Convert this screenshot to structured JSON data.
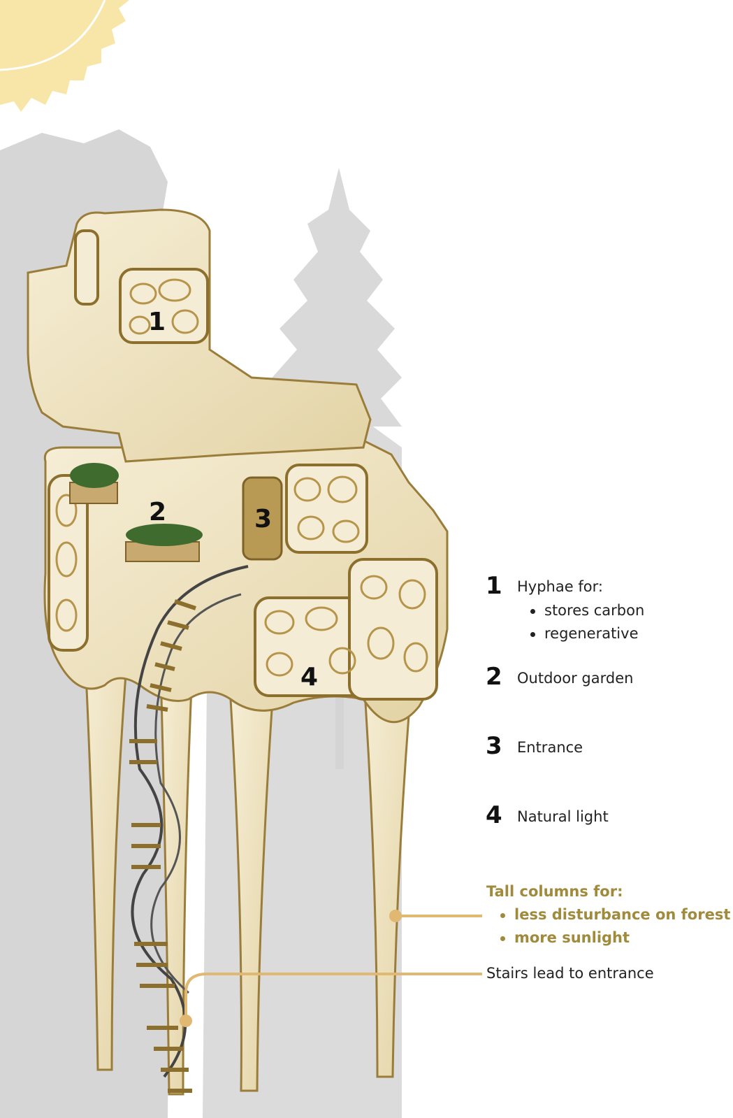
{
  "colors": {
    "sun": "#f7e6a8",
    "tree_silhouette": "#c9c9c9",
    "structure_fill": "#efe4c6",
    "structure_outline": "#9a7d3a",
    "accent_text": "#a08a3c",
    "leader_line": "#e0b872",
    "garden": "#3f6b2f"
  },
  "markers": [
    "1",
    "2",
    "3",
    "4"
  ],
  "legend": [
    {
      "number": "1",
      "label": "Hyphae for:",
      "bullets": [
        "stores carbon",
        "regenerative"
      ]
    },
    {
      "number": "2",
      "label": "Outdoor garden",
      "bullets": []
    },
    {
      "number": "3",
      "label": "Entrance",
      "bullets": []
    },
    {
      "number": "4",
      "label": "Natural light",
      "bullets": []
    }
  ],
  "columns_note": {
    "title": "Tall columns for:",
    "bullets": [
      "less disturbance on forest",
      "more sunlight"
    ]
  },
  "stairs_note": "Stairs lead to entrance"
}
